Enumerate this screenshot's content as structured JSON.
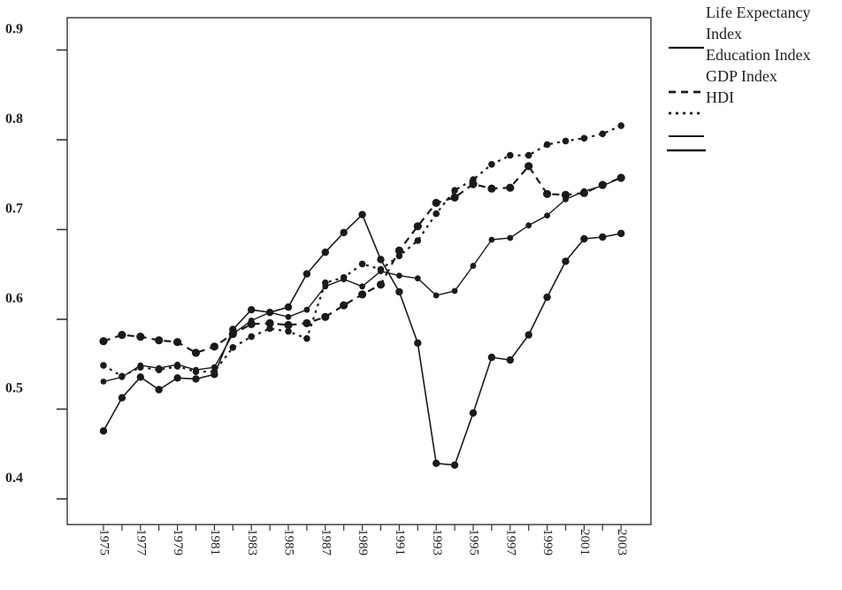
{
  "chart_data": {
    "type": "line",
    "title": "",
    "xlabel": "",
    "ylabel": "",
    "x": [
      1975,
      1976,
      1977,
      1978,
      1979,
      1980,
      1981,
      1982,
      1983,
      1984,
      1985,
      1986,
      1987,
      1988,
      1989,
      1990,
      1991,
      1992,
      1993,
      1994,
      1995,
      1996,
      1997,
      1998,
      1999,
      2000,
      2001,
      2002,
      2003
    ],
    "x_tick_labels": [
      "1975",
      "1977",
      "1979",
      "1981",
      "1983",
      "1985",
      "1987",
      "1989",
      "1991",
      "1993",
      "1995",
      "1997",
      "1999",
      "2001",
      "2003"
    ],
    "y_tick_labels": [
      "0.9",
      "0.8",
      "0.7",
      "0.6",
      "0.5",
      "0.4"
    ],
    "ylim": [
      0.38,
      0.92
    ],
    "legend_position": "right",
    "series": [
      {
        "name": "Life Expectancy Index",
        "name_lines": [
          "Life Expectancy",
          "Index"
        ],
        "style": "solid",
        "color": "#1a1a1a",
        "values": [
          0.452,
          0.489,
          0.512,
          0.498,
          0.511,
          0.51,
          0.515,
          0.565,
          0.587,
          0.584,
          0.59,
          0.627,
          0.651,
          0.673,
          0.693,
          0.643,
          0.607,
          0.55,
          0.416,
          0.414,
          0.472,
          0.534,
          0.531,
          0.559,
          0.601,
          0.641,
          0.666,
          0.668,
          0.672
        ]
      },
      {
        "name": "Education Index",
        "name_lines": [
          "Education Index"
        ],
        "style": "dashed",
        "color": "#1a1a1a",
        "values": [
          0.552,
          0.559,
          0.557,
          0.553,
          0.551,
          0.539,
          0.546,
          0.56,
          0.571,
          0.572,
          0.57,
          0.572,
          0.579,
          0.592,
          0.604,
          0.615,
          0.653,
          0.68,
          0.706,
          0.712,
          0.727,
          0.722,
          0.723,
          0.747,
          0.716,
          0.715,
          0.717,
          0.726,
          0.734
        ]
      },
      {
        "name": "GDP Index",
        "name_lines": [
          "GDP Index"
        ],
        "style": "dotted",
        "color": "#1a1a1a",
        "values": [
          0.525,
          0.513,
          0.523,
          0.52,
          0.524,
          0.518,
          0.518,
          0.545,
          0.557,
          0.566,
          0.563,
          0.555,
          0.617,
          0.623,
          0.638,
          0.632,
          0.647,
          0.664,
          0.694,
          0.72,
          0.732,
          0.749,
          0.759,
          0.759,
          0.771,
          0.775,
          0.778,
          0.783,
          0.792
        ]
      },
      {
        "name": "HDI",
        "name_lines": [
          "HDI"
        ],
        "style": "solid-thin",
        "color": "#1a1a1a",
        "values": [
          0.507,
          0.512,
          0.525,
          0.522,
          0.526,
          0.52,
          0.523,
          0.56,
          0.575,
          0.584,
          0.579,
          0.587,
          0.613,
          0.621,
          0.613,
          0.63,
          0.625,
          0.622,
          0.603,
          0.608,
          0.636,
          0.665,
          0.667,
          0.681,
          0.692,
          0.71,
          0.719,
          0.725,
          0.734
        ]
      }
    ]
  }
}
